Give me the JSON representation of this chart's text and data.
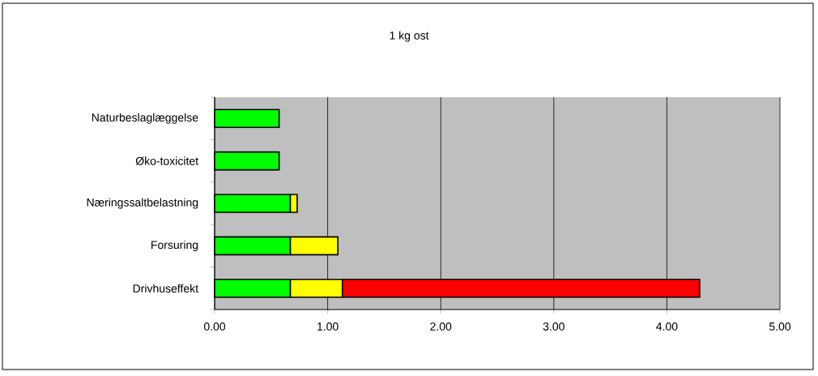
{
  "chart_data": {
    "type": "bar",
    "orientation": "horizontal",
    "stacked": true,
    "title": "1 kg ost",
    "categories": [
      "Naturbeslaglæggelse",
      "Øko-toxicitet",
      "Næringssaltbelastning",
      "Forsuring",
      "Drivhuseffekt"
    ],
    "series": [
      {
        "color": "#00ff00",
        "values": [
          0.57,
          0.57,
          0.67,
          0.67,
          0.67
        ]
      },
      {
        "color": "#ffff00",
        "values": [
          null,
          null,
          0.06,
          0.42,
          0.46
        ]
      },
      {
        "color": "#ff0000",
        "values": [
          null,
          null,
          null,
          null,
          3.16
        ]
      }
    ],
    "xlim": [
      0,
      5
    ],
    "xticks": [
      {
        "value": 0,
        "label": "0.00"
      },
      {
        "value": 1,
        "label": "1.00"
      },
      {
        "value": 2,
        "label": "2.00"
      },
      {
        "value": 3,
        "label": "3.00"
      },
      {
        "value": 4,
        "label": "4.00"
      },
      {
        "value": 5,
        "label": "5.00"
      }
    ],
    "grid": "x"
  }
}
